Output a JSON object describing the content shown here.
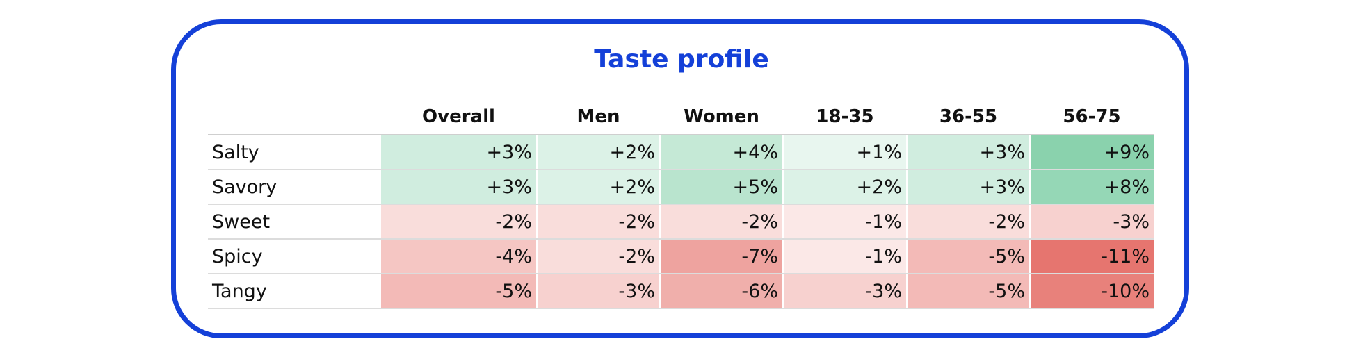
{
  "chart_data": {
    "type": "heatmap",
    "title": "Taste profile",
    "columns": [
      "Overall",
      "Men",
      "Women",
      "18-35",
      "36-55",
      "56-75"
    ],
    "rows": [
      "Salty",
      "Savory",
      "Sweet",
      "Spicy",
      "Tangy"
    ],
    "values": [
      [
        3,
        2,
        4,
        1,
        3,
        9
      ],
      [
        3,
        2,
        5,
        2,
        3,
        8
      ],
      [
        -2,
        -2,
        -2,
        -1,
        -2,
        -3
      ],
      [
        -4,
        -2,
        -7,
        -1,
        -5,
        -11
      ],
      [
        -5,
        -3,
        -6,
        -3,
        -5,
        -10
      ]
    ],
    "labels": [
      [
        "+3%",
        "+2%",
        "+4%",
        "+1%",
        "+3%",
        "+9%"
      ],
      [
        "+3%",
        "+2%",
        "+5%",
        "+2%",
        "+3%",
        "+8%"
      ],
      [
        "-2%",
        "-2%",
        "-2%",
        "-1%",
        "-2%",
        "-3%"
      ],
      [
        "-4%",
        "-2%",
        "-7%",
        "-1%",
        "-5%",
        "-11%"
      ],
      [
        "-5%",
        "-3%",
        "-6%",
        "-3%",
        "-5%",
        "-10%"
      ]
    ],
    "colors": {
      "positive": "#72c99d",
      "negative": "#e6756f",
      "card_border": "#1440d8",
      "title": "#1440d8"
    },
    "color_scale_max": 11
  }
}
